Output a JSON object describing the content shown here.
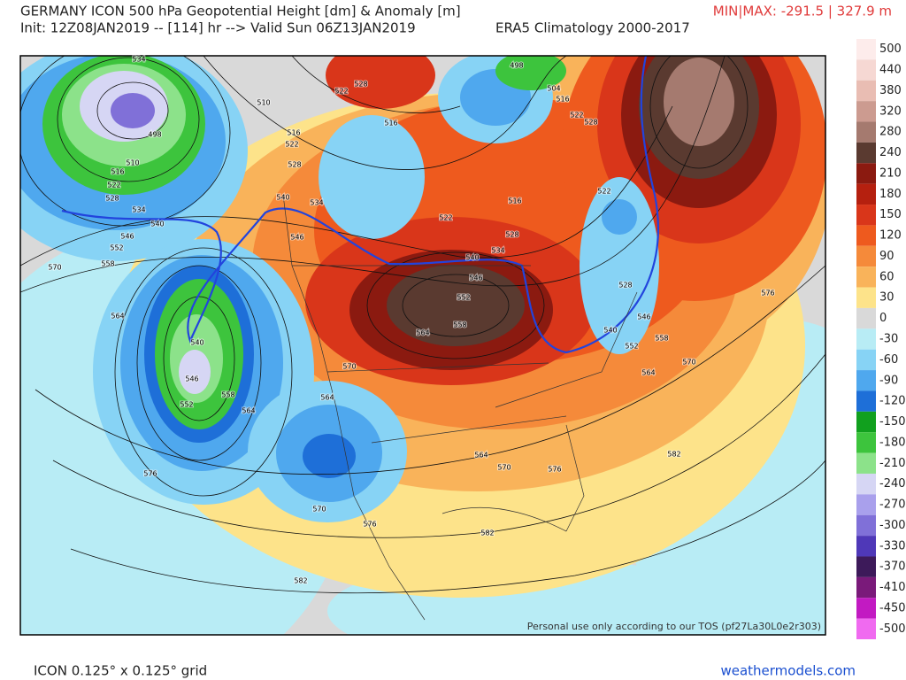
{
  "header": {
    "title": "GERMANY ICON 500 hPa Geopotential Height [dm] & Anomaly [m]",
    "init": "Init: 12Z08JAN2019 -- [114] hr --> Valid Sun 06Z13JAN2019",
    "climatology": "ERA5 Climatology 2000-2017",
    "minmax": "MIN|MAX: -291.5 | 327.9 m"
  },
  "contour_labels": [
    534,
    498,
    510,
    516,
    522,
    528,
    534,
    540,
    546,
    552,
    558,
    570,
    564,
    510,
    516,
    522,
    528,
    522,
    528,
    516,
    540,
    534,
    546,
    498,
    504,
    516,
    522,
    528,
    522,
    522,
    516,
    528,
    534,
    540,
    546,
    552,
    558,
    564,
    540,
    546,
    552,
    558,
    564,
    570,
    564,
    576,
    564,
    570,
    576,
    582,
    576,
    570,
    564,
    558,
    552,
    546,
    540,
    528,
    576,
    570,
    582,
    582
  ],
  "colorbar": {
    "labels": [
      500,
      440,
      380,
      320,
      280,
      240,
      210,
      180,
      150,
      120,
      90,
      60,
      30,
      0,
      -30,
      -60,
      -90,
      -120,
      -150,
      -180,
      -210,
      -240,
      -270,
      -300,
      -330,
      -370,
      -410,
      -450,
      -500
    ],
    "colors": [
      "#fdeceb",
      "#f6d8d3",
      "#e9bdb3",
      "#cc9b90",
      "#a57a6f",
      "#5a3a30",
      "#8b1a10",
      "#b5200f",
      "#d9361a",
      "#ee5a1e",
      "#f58a3a",
      "#f9b35a",
      "#fde38a",
      "#d9d9d9",
      "#b8ecf5",
      "#87d3f5",
      "#4fa8ee",
      "#1e6fd8",
      "#11a01e",
      "#3dc43d",
      "#8ce28a",
      "#d6d6f4",
      "#a9a0ec",
      "#8070d8",
      "#4f38b8",
      "#3d1a5a",
      "#7a1a7a",
      "#c21ac2",
      "#f06af0"
    ]
  },
  "watermark": "Personal use only according to our TOS (pf27La30L0e2r303)",
  "footer": {
    "grid": "ICON 0.125° x 0.125° grid",
    "site": "weathermodels.com"
  }
}
